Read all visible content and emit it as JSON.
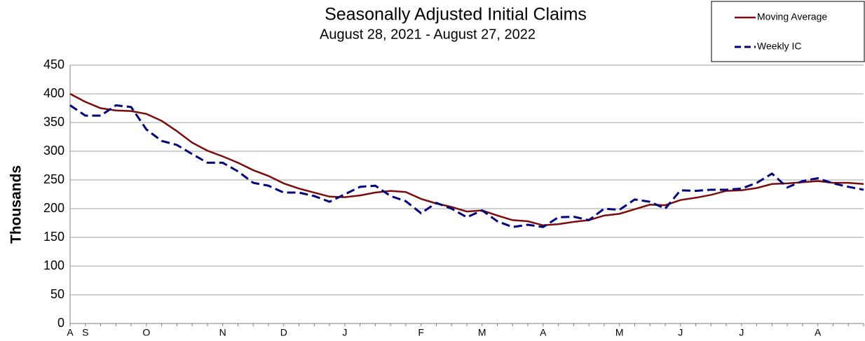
{
  "chart_data": {
    "type": "line",
    "title": "Seasonally Adjusted Initial Claims",
    "subtitle": "August 28, 2021 - August 27, 2022",
    "y_label": "Thousands",
    "categories": [
      "A",
      "S",
      null,
      null,
      null,
      "O",
      null,
      null,
      null,
      null,
      "N",
      null,
      null,
      null,
      "D",
      null,
      null,
      null,
      "J",
      null,
      null,
      null,
      null,
      "F",
      null,
      null,
      null,
      "M",
      null,
      null,
      null,
      "A",
      null,
      null,
      null,
      null,
      "M",
      null,
      null,
      null,
      "J",
      null,
      null,
      null,
      "J",
      null,
      null,
      null,
      null,
      "A",
      null,
      null,
      null
    ],
    "series": [
      {
        "name": "Moving Average",
        "color": "#7b0c0c",
        "dash": false,
        "values": [
          400,
          386,
          375,
          371,
          370,
          365,
          353,
          335,
          315,
          301,
          291,
          280,
          267,
          257,
          244,
          235,
          228,
          221,
          220,
          223,
          228,
          231,
          229,
          217,
          209,
          203,
          195,
          197,
          188,
          180,
          178,
          171,
          173,
          177,
          180,
          188,
          191,
          199,
          207,
          206,
          215,
          219,
          224,
          231,
          232,
          236,
          243,
          244,
          246,
          248,
          245,
          245,
          243
        ]
      },
      {
        "name": "Weekly IC",
        "color": "#00007f",
        "dash": true,
        "values": [
          380,
          362,
          362,
          380,
          377,
          338,
          318,
          311,
          295,
          280,
          280,
          265,
          245,
          240,
          228,
          228,
          222,
          212,
          225,
          238,
          240,
          222,
          213,
          192,
          210,
          200,
          185,
          197,
          178,
          168,
          172,
          168,
          185,
          186,
          180,
          200,
          198,
          216,
          212,
          200,
          232,
          231,
          233,
          233,
          235,
          245,
          261,
          237,
          248,
          253,
          244,
          238,
          233
        ]
      }
    ],
    "ylim": [
      0,
      450
    ],
    "yticks": [
      0,
      50,
      100,
      150,
      200,
      250,
      300,
      350,
      400,
      450
    ],
    "grid": true,
    "legend": "top-right"
  }
}
